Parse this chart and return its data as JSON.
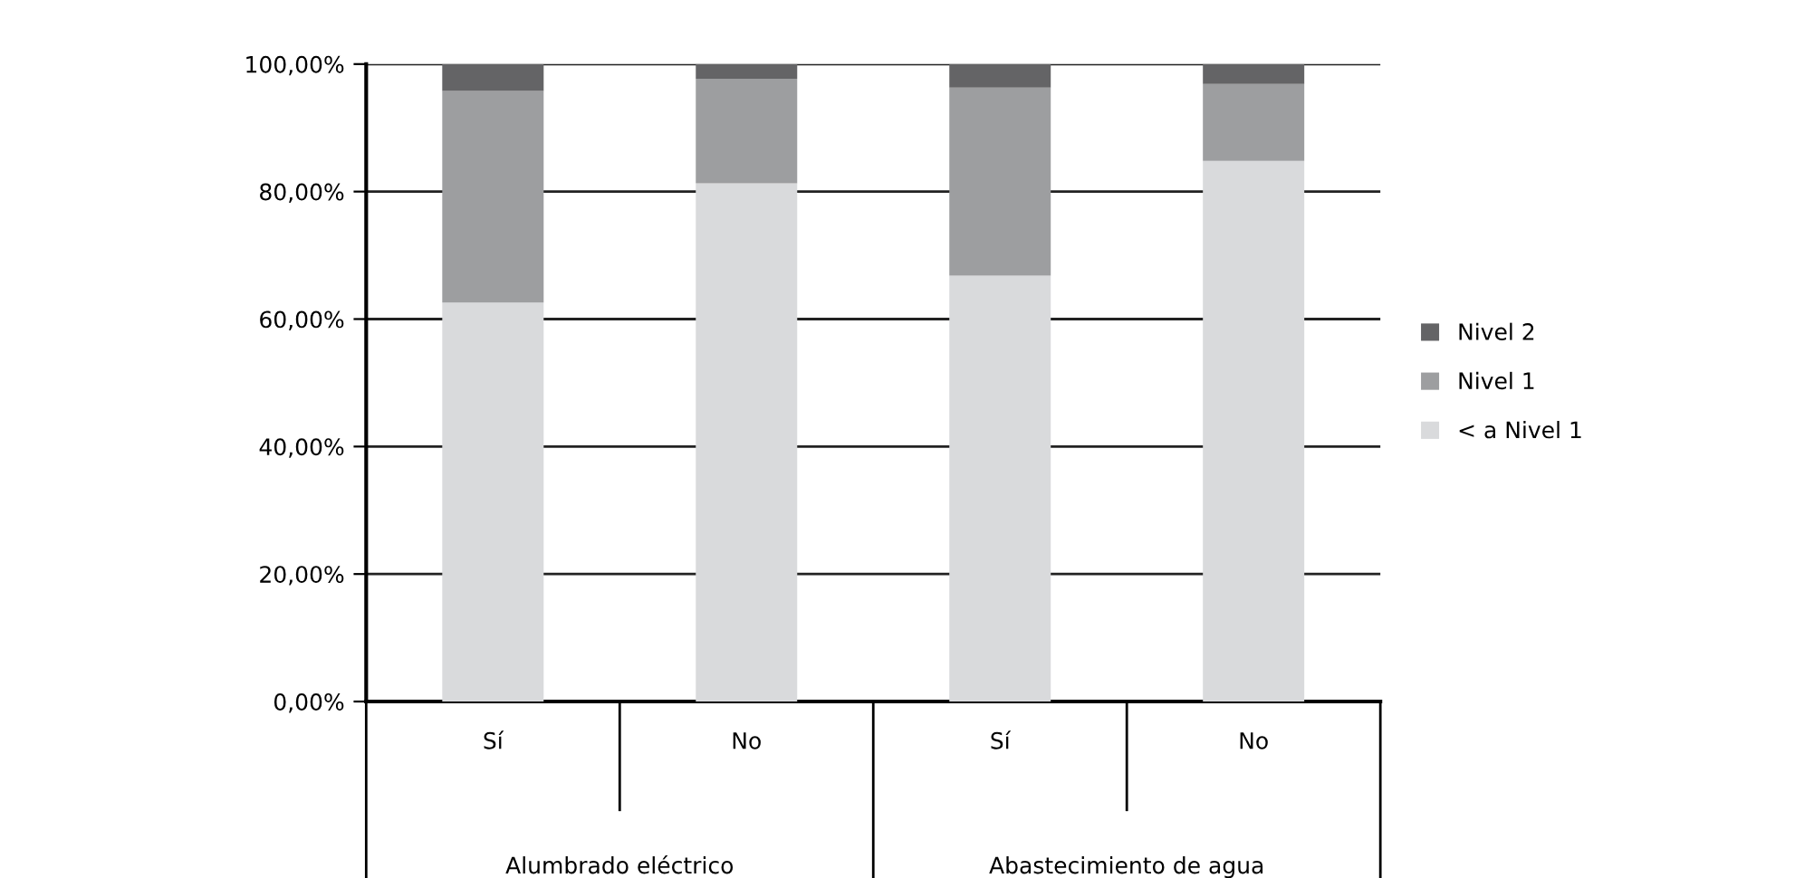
{
  "chart_data": {
    "type": "bar",
    "stacked": true,
    "categories": [
      "Sí",
      "No",
      "Sí",
      "No"
    ],
    "annotations": [
      "Alumbrado eléctrico",
      "Abastecimiento de agua"
    ],
    "series": [
      {
        "name": "< a Nivel 1",
        "color": "#d9dadc",
        "values": [
          62.6,
          81.3,
          66.8,
          84.8
        ]
      },
      {
        "name": "Nivel 1",
        "color": "#9d9ea0",
        "values": [
          33.2,
          16.4,
          29.5,
          12.1
        ]
      },
      {
        "name": "Nivel 2",
        "color": "#646466",
        "values": [
          4.2,
          2.3,
          3.7,
          3.1
        ]
      }
    ],
    "ylim": [
      0,
      100
    ],
    "yticks": [
      {
        "value": 0,
        "label": "0,00%"
      },
      {
        "value": 20,
        "label": "20,00%"
      },
      {
        "value": 40,
        "label": "40,00%"
      },
      {
        "value": 60,
        "label": "60,00%"
      },
      {
        "value": 80,
        "label": "80,00%"
      },
      {
        "value": 100,
        "label": "100,00%"
      }
    ],
    "grid": "y",
    "legend": "right"
  }
}
